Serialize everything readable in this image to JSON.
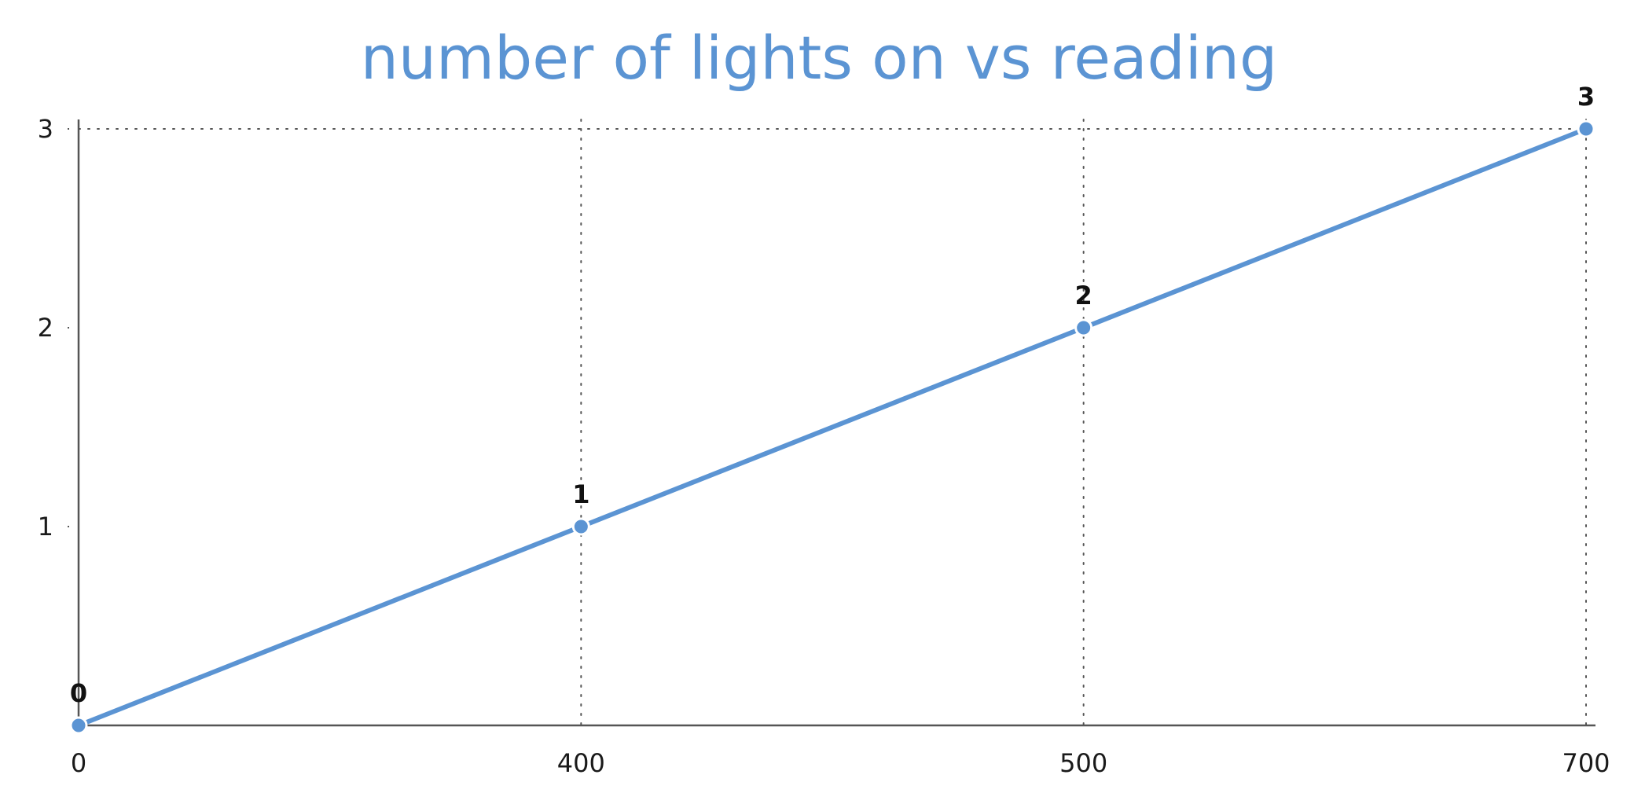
{
  "chart_data": {
    "type": "line",
    "title": "number of lights on vs reading",
    "xlabel": "",
    "ylabel": "",
    "x_axis_kind": "categorical",
    "categories": [
      "0",
      "400",
      "500",
      "700"
    ],
    "values": [
      0,
      1,
      2,
      3
    ],
    "data_labels": [
      "0",
      "1",
      "2",
      "3"
    ],
    "y_ticks": [
      "1",
      "2",
      "3"
    ],
    "ylim": [
      0,
      3
    ],
    "grid": {
      "x": true,
      "y_top_only": true,
      "style": "dotted"
    },
    "legend": "none",
    "colors": {
      "series": "#5b94d3",
      "title": "#5b94d3",
      "axis": "#555555"
    }
  }
}
